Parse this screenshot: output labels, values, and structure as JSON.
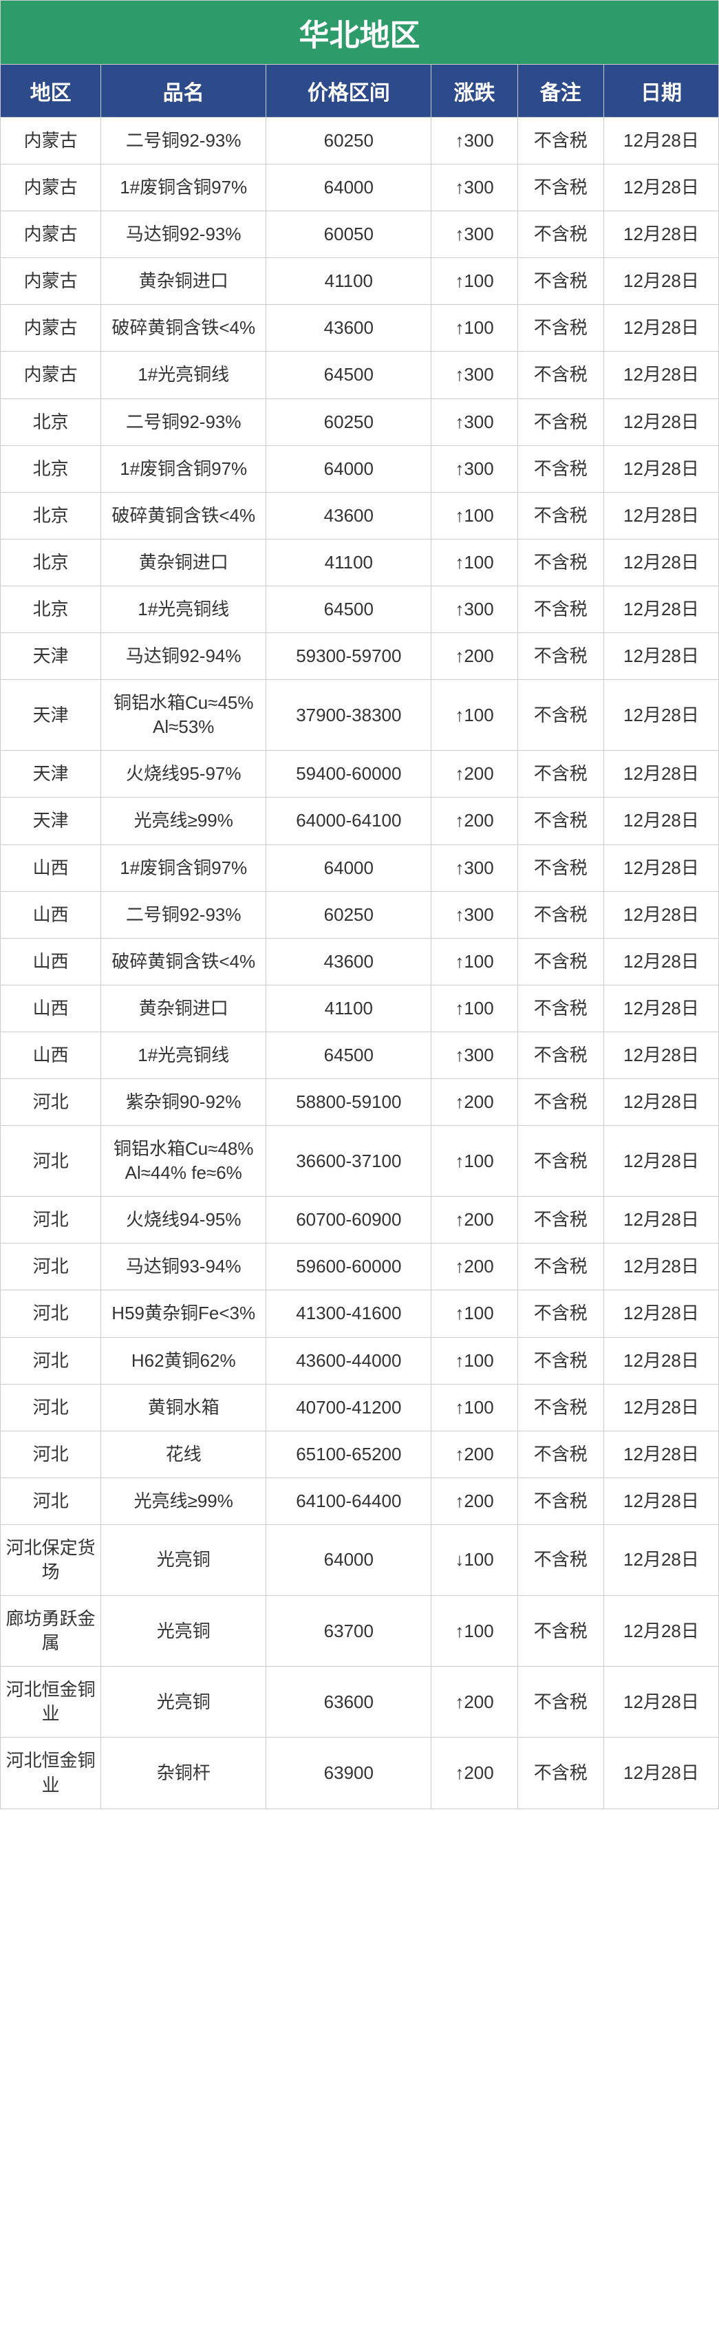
{
  "title": "华北地区",
  "colors": {
    "title_bg": "#2e9b6b",
    "header_bg": "#2d4a8a",
    "header_fg": "#ffffff",
    "row_bg": "#ffffff",
    "border": "#cccccc",
    "text": "#333333",
    "up": "#e03030",
    "down": "#2e9b3a",
    "date": "#e03030"
  },
  "columns": [
    "地区",
    "品名",
    "价格区间",
    "涨跌",
    "备注",
    "日期"
  ],
  "rows": [
    {
      "region": "内蒙古",
      "name": "二号铜92-93%",
      "price": "60250",
      "change": 300,
      "dir": "up",
      "note": "不含税",
      "date": "12月28日"
    },
    {
      "region": "内蒙古",
      "name": "1#废铜含铜97%",
      "price": "64000",
      "change": 300,
      "dir": "up",
      "note": "不含税",
      "date": "12月28日"
    },
    {
      "region": "内蒙古",
      "name": "马达铜92-93%",
      "price": "60050",
      "change": 300,
      "dir": "up",
      "note": "不含税",
      "date": "12月28日"
    },
    {
      "region": "内蒙古",
      "name": "黄杂铜进口",
      "price": "41100",
      "change": 100,
      "dir": "up",
      "note": "不含税",
      "date": "12月28日"
    },
    {
      "region": "内蒙古",
      "name": "破碎黄铜含铁<4%",
      "price": "43600",
      "change": 100,
      "dir": "up",
      "note": "不含税",
      "date": "12月28日"
    },
    {
      "region": "内蒙古",
      "name": "1#光亮铜线",
      "price": "64500",
      "change": 300,
      "dir": "up",
      "note": "不含税",
      "date": "12月28日"
    },
    {
      "region": "北京",
      "name": "二号铜92-93%",
      "price": "60250",
      "change": 300,
      "dir": "up",
      "note": "不含税",
      "date": "12月28日"
    },
    {
      "region": "北京",
      "name": "1#废铜含铜97%",
      "price": "64000",
      "change": 300,
      "dir": "up",
      "note": "不含税",
      "date": "12月28日"
    },
    {
      "region": "北京",
      "name": "破碎黄铜含铁<4%",
      "price": "43600",
      "change": 100,
      "dir": "up",
      "note": "不含税",
      "date": "12月28日"
    },
    {
      "region": "北京",
      "name": "黄杂铜进口",
      "price": "41100",
      "change": 100,
      "dir": "up",
      "note": "不含税",
      "date": "12月28日"
    },
    {
      "region": "北京",
      "name": "1#光亮铜线",
      "price": "64500",
      "change": 300,
      "dir": "up",
      "note": "不含税",
      "date": "12月28日"
    },
    {
      "region": "天津",
      "name": "马达铜92-94%",
      "price": "59300-59700",
      "change": 200,
      "dir": "up",
      "note": "不含税",
      "date": "12月28日"
    },
    {
      "region": "天津",
      "name": "铜铝水箱Cu≈45% Al≈53%",
      "price": "37900-38300",
      "change": 100,
      "dir": "up",
      "note": "不含税",
      "date": "12月28日"
    },
    {
      "region": "天津",
      "name": "火烧线95-97%",
      "price": "59400-60000",
      "change": 200,
      "dir": "up",
      "note": "不含税",
      "date": "12月28日"
    },
    {
      "region": "天津",
      "name": "光亮线≥99%",
      "price": "64000-64100",
      "change": 200,
      "dir": "up",
      "note": "不含税",
      "date": "12月28日"
    },
    {
      "region": "山西",
      "name": "1#废铜含铜97%",
      "price": "64000",
      "change": 300,
      "dir": "up",
      "note": "不含税",
      "date": "12月28日"
    },
    {
      "region": "山西",
      "name": "二号铜92-93%",
      "price": "60250",
      "change": 300,
      "dir": "up",
      "note": "不含税",
      "date": "12月28日"
    },
    {
      "region": "山西",
      "name": "破碎黄铜含铁<4%",
      "price": "43600",
      "change": 100,
      "dir": "up",
      "note": "不含税",
      "date": "12月28日"
    },
    {
      "region": "山西",
      "name": "黄杂铜进口",
      "price": "41100",
      "change": 100,
      "dir": "up",
      "note": "不含税",
      "date": "12月28日"
    },
    {
      "region": "山西",
      "name": "1#光亮铜线",
      "price": "64500",
      "change": 300,
      "dir": "up",
      "note": "不含税",
      "date": "12月28日"
    },
    {
      "region": "河北",
      "name": "紫杂铜90-92%",
      "price": "58800-59100",
      "change": 200,
      "dir": "up",
      "note": "不含税",
      "date": "12月28日"
    },
    {
      "region": "河北",
      "name": "铜铝水箱Cu≈48% Al≈44% fe≈6%",
      "price": "36600-37100",
      "change": 100,
      "dir": "up",
      "note": "不含税",
      "date": "12月28日"
    },
    {
      "region": "河北",
      "name": "火烧线94-95%",
      "price": "60700-60900",
      "change": 200,
      "dir": "up",
      "note": "不含税",
      "date": "12月28日"
    },
    {
      "region": "河北",
      "name": "马达铜93-94%",
      "price": "59600-60000",
      "change": 200,
      "dir": "up",
      "note": "不含税",
      "date": "12月28日"
    },
    {
      "region": "河北",
      "name": "H59黄杂铜Fe<3%",
      "price": "41300-41600",
      "change": 100,
      "dir": "up",
      "note": "不含税",
      "date": "12月28日"
    },
    {
      "region": "河北",
      "name": "H62黄铜62%",
      "price": "43600-44000",
      "change": 100,
      "dir": "up",
      "note": "不含税",
      "date": "12月28日"
    },
    {
      "region": "河北",
      "name": "黄铜水箱",
      "price": "40700-41200",
      "change": 100,
      "dir": "up",
      "note": "不含税",
      "date": "12月28日"
    },
    {
      "region": "河北",
      "name": "花线",
      "price": "65100-65200",
      "change": 200,
      "dir": "up",
      "note": "不含税",
      "date": "12月28日"
    },
    {
      "region": "河北",
      "name": "光亮线≥99%",
      "price": "64100-64400",
      "change": 200,
      "dir": "up",
      "note": "不含税",
      "date": "12月28日"
    },
    {
      "region": "河北保定货场",
      "name": "光亮铜",
      "price": "64000",
      "change": 100,
      "dir": "down",
      "note": "不含税",
      "date": "12月28日"
    },
    {
      "region": "廊坊勇跃金属",
      "name": "光亮铜",
      "price": "63700",
      "change": 100,
      "dir": "up",
      "note": "不含税",
      "date": "12月28日"
    },
    {
      "region": "河北恒金铜业",
      "name": "光亮铜",
      "price": "63600",
      "change": 200,
      "dir": "up",
      "note": "不含税",
      "date": "12月28日"
    },
    {
      "region": "河北恒金铜业",
      "name": "杂铜杆",
      "price": "63900",
      "change": 200,
      "dir": "up",
      "note": "不含税",
      "date": "12月28日"
    }
  ]
}
